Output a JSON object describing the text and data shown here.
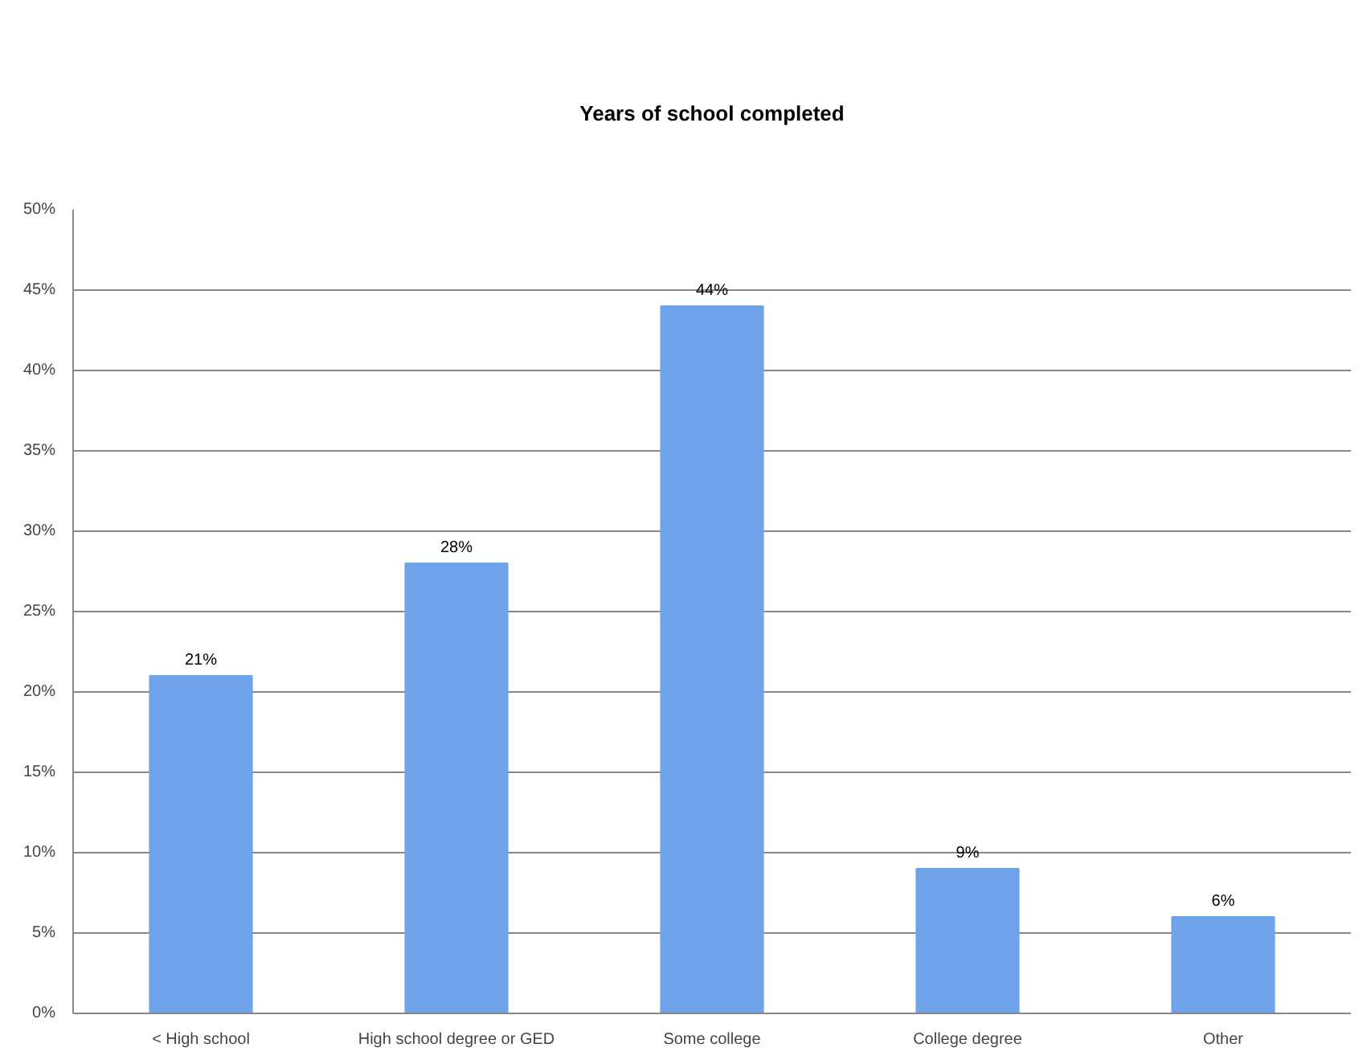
{
  "chart_data": {
    "type": "bar",
    "title": "Years of school completed",
    "categories": [
      "< High school",
      "High school degree or GED",
      "Some college",
      "College degree",
      "Other"
    ],
    "values": [
      21,
      28,
      44,
      9,
      6
    ],
    "value_labels": [
      "21%",
      "28%",
      "44%",
      "9%",
      "6%"
    ],
    "color": "#6fa3ea",
    "ylim": [
      0,
      50
    ],
    "yticks": [
      {
        "value": 0,
        "label": "0%"
      },
      {
        "value": 5,
        "label": "5%"
      },
      {
        "value": 10,
        "label": "10%"
      },
      {
        "value": 15,
        "label": "15%"
      },
      {
        "value": 20,
        "label": "20%"
      },
      {
        "value": 25,
        "label": "25%"
      },
      {
        "value": 30,
        "label": "30%"
      },
      {
        "value": 35,
        "label": "35%"
      },
      {
        "value": 40,
        "label": "40%"
      },
      {
        "value": 45,
        "label": "45%"
      },
      {
        "value": 50,
        "label": "50%"
      }
    ],
    "grid": "y"
  }
}
